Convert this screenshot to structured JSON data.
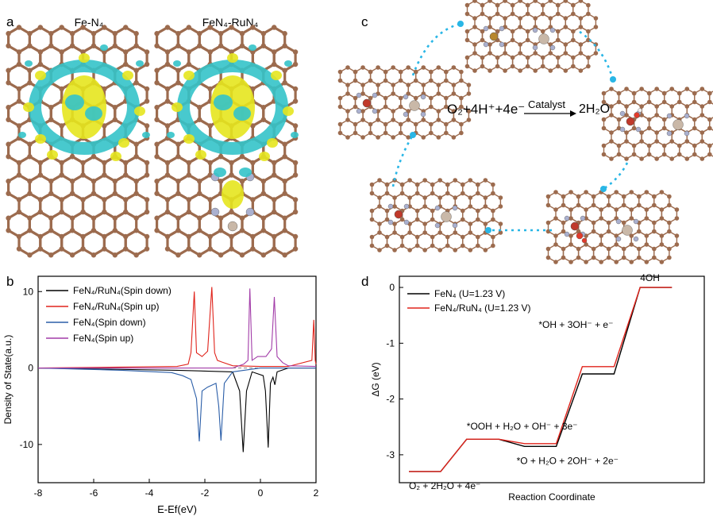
{
  "panel_a": {
    "letter": "a",
    "titles": [
      "Fe-N₄",
      "FeN₄-RuN₄"
    ]
  },
  "panel_b": {
    "letter": "b"
  },
  "panel_c": {
    "letter": "c",
    "reaction_left": "O₂+4H⁺+4e⁻",
    "reaction_catalyst": "Catalyst",
    "reaction_right": "2H₂O"
  },
  "panel_d": {
    "letter": "d"
  },
  "colors": {
    "carbon": "#9c6b4e",
    "nitrogen": "#aab0cf",
    "iron": "#c0392b",
    "ruthenium": "#c9b8a8",
    "cyan_density": "#34c3c9",
    "yellow_density": "#e6e61e",
    "arrow": "#29b6e6"
  },
  "chart_data": [
    {
      "type": "line",
      "panel": "b",
      "xlabel": "E-Ef(eV)",
      "ylabel": "Density of State(a.u.)",
      "xlim": [
        -8,
        2
      ],
      "ylim": [
        -15,
        12
      ],
      "xticks": [
        "-8",
        "-6",
        "-4",
        "-2",
        "0",
        "2"
      ],
      "yticks": [
        "10",
        "0",
        "-10"
      ],
      "legend_position": "top-left",
      "series": [
        {
          "name": "FeN₄/RuN₄(Spin down)",
          "color": "#000000",
          "x": [
            -8,
            -3,
            -1,
            -0.9,
            -0.75,
            -0.62,
            -0.5,
            -0.3,
            0.1,
            0.18,
            0.28,
            0.36,
            0.45,
            0.52,
            0.6,
            1.0,
            2.0
          ],
          "y": [
            0,
            -0.3,
            -0.5,
            -1.5,
            -3,
            -11,
            -3,
            -0.5,
            -1,
            -3,
            -10.4,
            -2,
            -1.2,
            -2.2,
            -0.5,
            0,
            0
          ]
        },
        {
          "name": "FeN₄/RuN₄(Spin up)",
          "color": "#e0231b",
          "x": [
            -8,
            -3,
            -2.6,
            -2.5,
            -2.38,
            -2.3,
            -2.1,
            -1.9,
            -1.75,
            -1.65,
            -1.55,
            -1.4,
            -1.0,
            0,
            1.0,
            1.85,
            1.92,
            1.97,
            2.0
          ],
          "y": [
            0,
            0.2,
            0.5,
            2,
            10,
            2,
            1.5,
            2.2,
            10.6,
            2,
            1,
            0.8,
            0.3,
            0.2,
            0.2,
            1,
            6.3,
            1,
            0.5
          ]
        },
        {
          "name": "FeN₄(Spin down)",
          "color": "#2b5ea8",
          "x": [
            -8,
            -5,
            -3.2,
            -2.8,
            -2.5,
            -2.3,
            -2.2,
            -2.1,
            -1.9,
            -1.6,
            -1.5,
            -1.42,
            -1.3,
            -1.0,
            0,
            2.0
          ],
          "y": [
            0,
            -0.3,
            -0.6,
            -1,
            -1.5,
            -4,
            -9.6,
            -3,
            -2.5,
            -2,
            -5,
            -9.5,
            -2,
            -0.5,
            0,
            0
          ]
        },
        {
          "name": "FeN₄(Spin up)",
          "color": "#a23ca8",
          "x": [
            -8,
            -1,
            -0.6,
            -0.45,
            -0.38,
            -0.3,
            -0.1,
            0.2,
            0.4,
            0.5,
            0.6,
            0.8,
            1.0,
            2.0
          ],
          "y": [
            0,
            0,
            0.5,
            1,
            10.4,
            1,
            1.5,
            1.5,
            2.5,
            9.3,
            1.5,
            0.7,
            0.3,
            0.2
          ]
        }
      ]
    },
    {
      "type": "line",
      "panel": "d",
      "xlabel": "Reaction Coordinate",
      "ylabel": "ΔG (eV)",
      "ylim": [
        -3.5,
        0.2
      ],
      "yticks": [
        "0",
        "-1",
        "-2",
        "-3"
      ],
      "legend_position": "top-left",
      "step_labels": [
        "O₂ + 2H₂O + 4e⁻",
        "*OOH + H₂O + OH⁻ + 3e⁻",
        "*O + H₂O + 2OH⁻ + 2e⁻",
        "*OH + 3OH⁻ + e⁻",
        "4OH⁻"
      ],
      "series": [
        {
          "name": "FeN₄ (U=1.23 V)",
          "color": "#000000",
          "values": [
            -3.3,
            -2.72,
            -2.85,
            -1.55,
            0
          ]
        },
        {
          "name": "FeN₄/RuN₄ (U=1.23 V)",
          "color": "#e0231b",
          "values": [
            -3.3,
            -2.72,
            -2.8,
            -1.42,
            0
          ]
        }
      ]
    }
  ]
}
